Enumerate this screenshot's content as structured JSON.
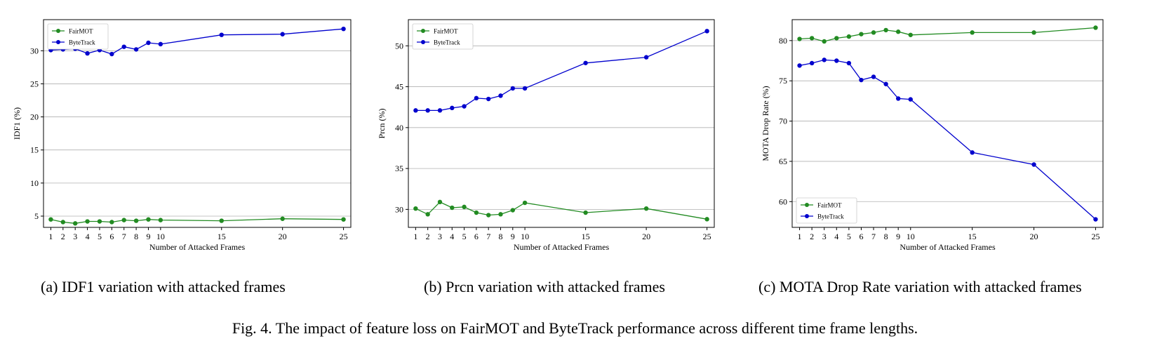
{
  "chart_data": [
    {
      "type": "line",
      "title": "",
      "xlabel": "Number of Attacked Frames",
      "ylabel": "IDF1 (%)",
      "xlim": [
        0.4,
        25.6
      ],
      "ylim": [
        3.3,
        34.7
      ],
      "xticks": [
        1,
        2,
        3,
        4,
        5,
        6,
        7,
        8,
        9,
        10,
        15,
        20,
        25
      ],
      "yticks": [
        5,
        10,
        15,
        20,
        25,
        30
      ],
      "grid": "y",
      "legend_position": "top-left",
      "x": [
        1,
        2,
        3,
        4,
        5,
        6,
        7,
        8,
        9,
        10,
        15,
        20,
        25
      ],
      "series": [
        {
          "name": "FairMOT",
          "color": "#228B22",
          "values": [
            4.5,
            4.1,
            3.9,
            4.2,
            4.2,
            4.1,
            4.4,
            4.3,
            4.5,
            4.4,
            4.3,
            4.6,
            4.5
          ]
        },
        {
          "name": "ByteTrack",
          "color": "#0000CD",
          "values": [
            30.1,
            30.2,
            30.3,
            29.6,
            30.1,
            29.5,
            30.6,
            30.2,
            31.2,
            31.0,
            32.4,
            32.5,
            33.3
          ]
        }
      ],
      "subcaption": "(a)  IDF1 variation with attacked frames"
    },
    {
      "type": "line",
      "title": "",
      "xlabel": "Number of Attacked Frames",
      "ylabel": "Prcn (%)",
      "xlim": [
        0.4,
        25.6
      ],
      "ylim": [
        27.8,
        53.2
      ],
      "xticks": [
        1,
        2,
        3,
        4,
        5,
        6,
        7,
        8,
        9,
        10,
        15,
        20,
        25
      ],
      "yticks": [
        30,
        35,
        40,
        45,
        50
      ],
      "grid": "y",
      "legend_position": "top-left",
      "x": [
        1,
        2,
        3,
        4,
        5,
        6,
        7,
        8,
        9,
        10,
        15,
        20,
        25
      ],
      "series": [
        {
          "name": "FairMOT",
          "color": "#228B22",
          "values": [
            30.1,
            29.4,
            30.9,
            30.2,
            30.3,
            29.6,
            29.3,
            29.4,
            29.9,
            30.8,
            29.6,
            30.1,
            28.8
          ]
        },
        {
          "name": "ByteTrack",
          "color": "#0000CD",
          "values": [
            42.1,
            42.1,
            42.1,
            42.4,
            42.6,
            43.6,
            43.5,
            43.9,
            44.8,
            44.8,
            47.9,
            48.6,
            51.8
          ]
        }
      ],
      "subcaption": "(b)  Prcn variation with attacked frames"
    },
    {
      "type": "line",
      "title": "",
      "xlabel": "Number of Attacked Frames",
      "ylabel": "MOTA Drop Rate (%)",
      "xlim": [
        0.4,
        25.6
      ],
      "ylim": [
        56.8,
        82.6
      ],
      "xticks": [
        1,
        2,
        3,
        4,
        5,
        6,
        7,
        8,
        9,
        10,
        15,
        20,
        25
      ],
      "yticks": [
        60,
        65,
        70,
        75,
        80
      ],
      "grid": "y",
      "legend_position": "bottom-left",
      "x": [
        1,
        2,
        3,
        4,
        5,
        6,
        7,
        8,
        9,
        10,
        15,
        20,
        25
      ],
      "series": [
        {
          "name": "FairMOT",
          "color": "#228B22",
          "values": [
            80.2,
            80.3,
            79.9,
            80.3,
            80.5,
            80.8,
            81.0,
            81.3,
            81.1,
            80.7,
            81.0,
            81.0,
            81.6
          ]
        },
        {
          "name": "ByteTrack",
          "color": "#0000CD",
          "values": [
            76.9,
            77.2,
            77.6,
            77.5,
            77.2,
            75.1,
            75.5,
            74.6,
            72.8,
            72.7,
            66.1,
            64.6,
            57.8
          ]
        }
      ],
      "subcaption": "(c)  MOTA Drop Rate variation with attacked frames"
    }
  ],
  "figure_caption": "Fig. 4.  The impact of feature loss on FairMOT and ByteTrack performance across different time frame lengths."
}
